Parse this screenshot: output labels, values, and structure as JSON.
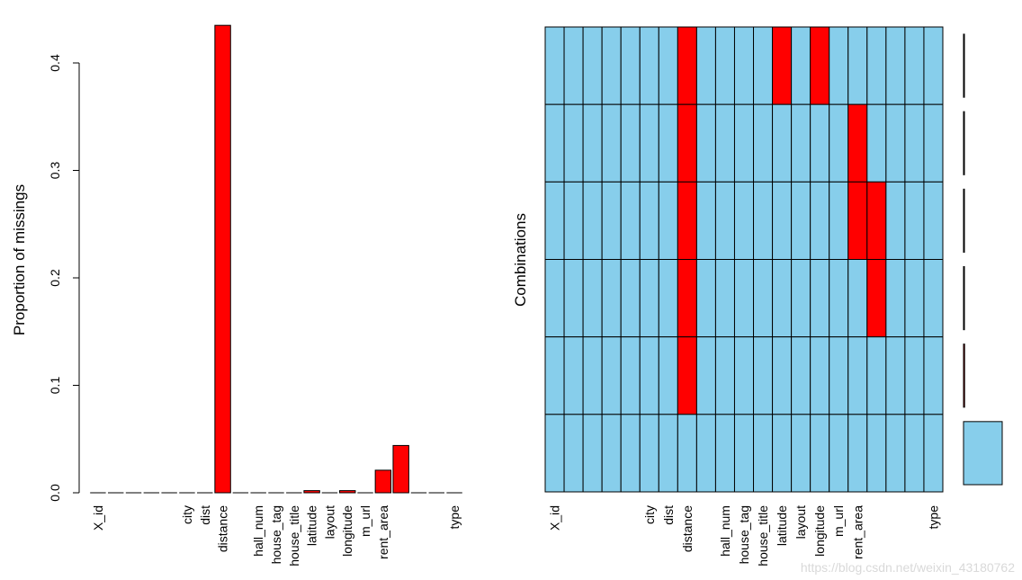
{
  "colors": {
    "missing": "#ff0000",
    "observed": "#87ceeb",
    "axis": "#000000",
    "background": "#ffffff"
  },
  "watermark": "https://blog.csdn.net/weixin_43180762",
  "chart_data": [
    {
      "type": "bar",
      "ylabel": "Proportion of missings",
      "ylim": [
        0,
        0.4
      ],
      "yticks": [
        "0.0",
        "0.1",
        "0.2",
        "0.3",
        "0.4"
      ],
      "categories": [
        "X_id",
        "",
        "",
        "",
        "",
        "city",
        "dist",
        "distance",
        "",
        "hall_num",
        "house_tag",
        "house_title",
        "latitude",
        "layout",
        "longitude",
        "m_url",
        "rent_area",
        "",
        "",
        "",
        "type"
      ],
      "values": [
        0,
        0,
        0,
        0,
        0,
        0,
        0,
        0.435,
        0,
        0,
        0,
        0,
        0.002,
        0,
        0.002,
        0,
        0.021,
        0.044,
        0,
        0,
        0
      ]
    },
    {
      "type": "heatmap",
      "ylabel": "Combinations",
      "columns": [
        "X_id",
        "",
        "",
        "",
        "",
        "city",
        "dist",
        "distance",
        "",
        "hall_num",
        "house_tag",
        "house_title",
        "latitude",
        "layout",
        "longitude",
        "m_url",
        "rent_area",
        "",
        "",
        "",
        "type"
      ],
      "rows": [
        [
          0,
          0,
          0,
          0,
          0,
          0,
          0,
          1,
          0,
          0,
          0,
          0,
          1,
          0,
          1,
          0,
          0,
          0,
          0,
          0,
          0
        ],
        [
          0,
          0,
          0,
          0,
          0,
          0,
          0,
          1,
          0,
          0,
          0,
          0,
          0,
          0,
          0,
          0,
          1,
          0,
          0,
          0,
          0
        ],
        [
          0,
          0,
          0,
          0,
          0,
          0,
          0,
          1,
          0,
          0,
          0,
          0,
          0,
          0,
          0,
          0,
          1,
          1,
          0,
          0,
          0
        ],
        [
          0,
          0,
          0,
          0,
          0,
          0,
          0,
          1,
          0,
          0,
          0,
          0,
          0,
          0,
          0,
          0,
          0,
          1,
          0,
          0,
          0
        ],
        [
          0,
          0,
          0,
          0,
          0,
          0,
          0,
          1,
          0,
          0,
          0,
          0,
          0,
          0,
          0,
          0,
          0,
          0,
          0,
          0,
          0
        ],
        [
          0,
          0,
          0,
          0,
          0,
          0,
          0,
          0,
          0,
          0,
          0,
          0,
          0,
          0,
          0,
          0,
          0,
          0,
          0,
          0,
          0
        ]
      ],
      "row_frequencies": [
        0.0006,
        0.0006,
        0.001,
        0.0012,
        0.027,
        0.965
      ]
    }
  ]
}
